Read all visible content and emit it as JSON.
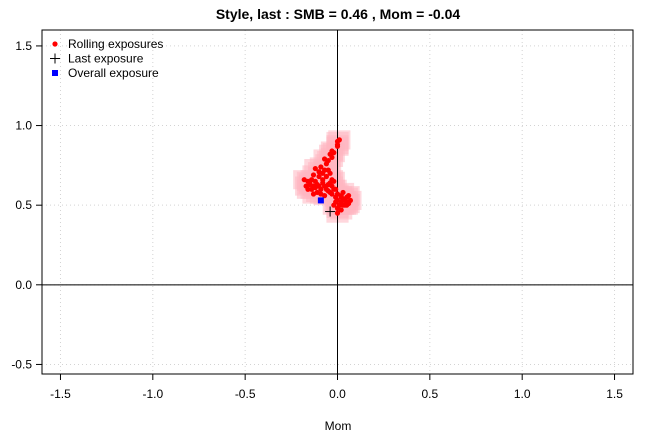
{
  "chart_data": {
    "type": "scatter",
    "title": "Style, last :   SMB  =  0.46 ,  Mom  =  -0.04",
    "xlabel": "Mom",
    "ylabel": "",
    "xlim": [
      -1.6,
      1.6
    ],
    "ylim": [
      -0.56,
      1.6
    ],
    "x_ticks": [
      -1.5,
      -1.0,
      -0.5,
      0.0,
      0.5,
      1.0,
      1.5
    ],
    "x_tick_labels": [
      "-1.5",
      "-1.0",
      "-0.5",
      "0.0",
      "0.5",
      "1.0",
      "1.5"
    ],
    "y_ticks": [
      -0.5,
      0.0,
      0.5,
      1.0,
      1.5
    ],
    "y_tick_labels": [
      "-0.5",
      "0.0",
      "0.5",
      "1.0",
      "1.5"
    ],
    "grid": true,
    "reference_lines": {
      "x": 0,
      "y": 0
    },
    "legend": {
      "position": "top-left",
      "entries": [
        {
          "label": "Rolling exposures",
          "marker": "dot",
          "color": "#ff0000"
        },
        {
          "label": "Last exposure",
          "marker": "plus",
          "color": "#000000"
        },
        {
          "label": "Overall exposure",
          "marker": "square",
          "color": "#0000ff"
        }
      ]
    },
    "colors": {
      "rolling": "#ff0000",
      "last": "#000000",
      "overall": "#0000ff",
      "band": "#ffb6c1"
    },
    "series": [
      {
        "name": "Rolling exposures",
        "points": [
          [
            0.0,
            0.9
          ],
          [
            0.01,
            0.91
          ],
          [
            0.0,
            0.88
          ],
          [
            0.0,
            0.87
          ],
          [
            -0.03,
            0.84
          ],
          [
            -0.02,
            0.83
          ],
          [
            -0.04,
            0.82
          ],
          [
            -0.03,
            0.8
          ],
          [
            -0.05,
            0.78
          ],
          [
            -0.06,
            0.76
          ],
          [
            -0.07,
            0.79
          ],
          [
            -0.09,
            0.74
          ],
          [
            -0.07,
            0.72
          ],
          [
            -0.08,
            0.7
          ],
          [
            -0.1,
            0.71
          ],
          [
            -0.12,
            0.73
          ],
          [
            -0.05,
            0.72
          ],
          [
            -0.04,
            0.7
          ],
          [
            -0.14,
            0.66
          ],
          [
            -0.16,
            0.65
          ],
          [
            -0.18,
            0.66
          ],
          [
            -0.15,
            0.64
          ],
          [
            -0.13,
            0.62
          ],
          [
            -0.12,
            0.65
          ],
          [
            -0.11,
            0.63
          ],
          [
            -0.17,
            0.62
          ],
          [
            -0.16,
            0.6
          ],
          [
            -0.14,
            0.6
          ],
          [
            -0.12,
            0.61
          ],
          [
            -0.1,
            0.62
          ],
          [
            -0.08,
            0.64
          ],
          [
            -0.07,
            0.62
          ],
          [
            -0.09,
            0.6
          ],
          [
            -0.06,
            0.6
          ],
          [
            -0.05,
            0.63
          ],
          [
            -0.03,
            0.62
          ],
          [
            -0.02,
            0.6
          ],
          [
            -0.04,
            0.58
          ],
          [
            -0.03,
            0.57
          ],
          [
            -0.05,
            0.59
          ],
          [
            -0.08,
            0.66
          ],
          [
            -0.06,
            0.68
          ],
          [
            -0.1,
            0.68
          ],
          [
            -0.13,
            0.69
          ],
          [
            -0.03,
            0.66
          ],
          [
            -0.02,
            0.65
          ],
          [
            -0.01,
            0.6
          ],
          [
            0.0,
            0.57
          ],
          [
            0.02,
            0.56
          ],
          [
            0.03,
            0.58
          ],
          [
            0.02,
            0.55
          ],
          [
            0.0,
            0.53
          ],
          [
            0.02,
            0.52
          ],
          [
            0.04,
            0.53
          ],
          [
            0.05,
            0.52
          ],
          [
            0.06,
            0.51
          ],
          [
            0.07,
            0.53
          ],
          [
            0.05,
            0.5
          ],
          [
            0.03,
            0.5
          ],
          [
            0.01,
            0.5
          ],
          [
            0.0,
            0.48
          ],
          [
            -0.01,
            0.52
          ],
          [
            0.06,
            0.56
          ],
          [
            0.05,
            0.55
          ],
          [
            0.04,
            0.5
          ],
          [
            0.02,
            0.47
          ],
          [
            0.0,
            0.45
          ],
          [
            -0.02,
            0.5
          ],
          [
            -0.01,
            0.55
          ],
          [
            0.03,
            0.54
          ],
          [
            -0.11,
            0.58
          ],
          [
            -0.13,
            0.57
          ],
          [
            -0.09,
            0.57
          ],
          [
            -0.07,
            0.56
          ],
          [
            -0.15,
            0.63
          ],
          [
            -0.04,
            0.64
          ]
        ]
      },
      {
        "name": "Last exposure",
        "points": [
          [
            -0.04,
            0.46
          ]
        ]
      },
      {
        "name": "Overall exposure",
        "points": [
          [
            -0.09,
            0.53
          ]
        ]
      }
    ],
    "band_width": 0.06
  }
}
